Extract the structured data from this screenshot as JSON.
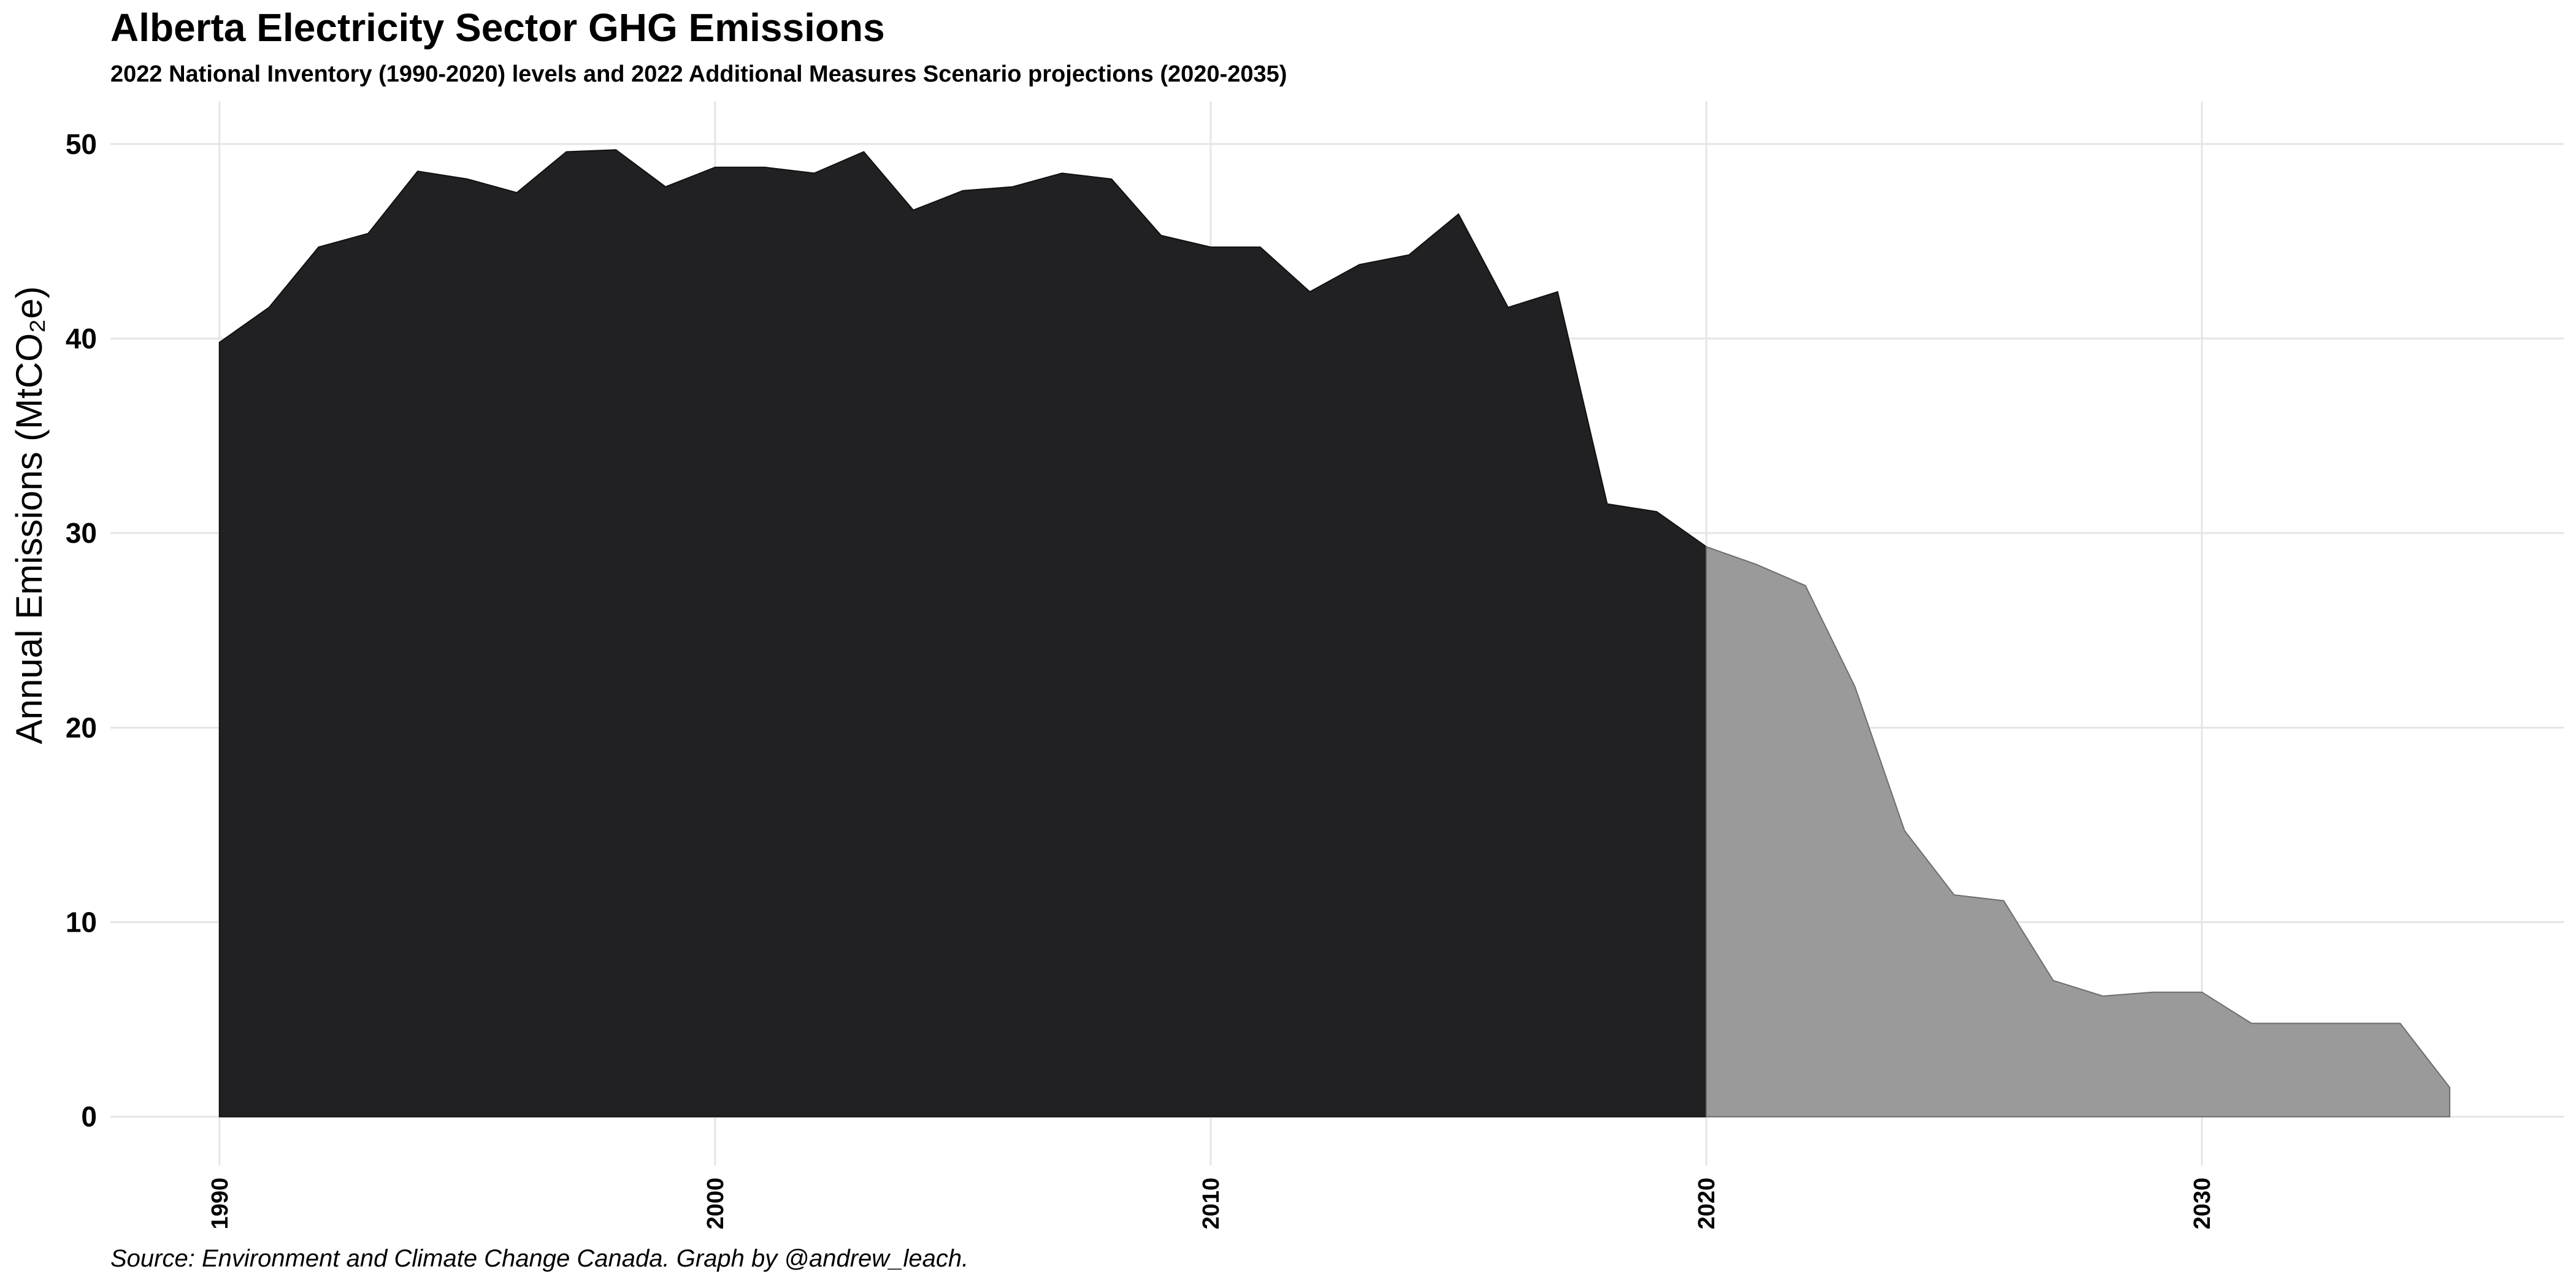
{
  "chart_data": {
    "type": "area",
    "title": "Alberta Electricity Sector GHG Emissions",
    "subtitle": "2022 National Inventory (1990-2020) levels and 2022 Additional Measures Scenario projections (2020-2035)",
    "caption": "Source: Environment and Climate Change Canada. Graph by @andrew_leach.",
    "ylabel": "Annual Emissions  (MtCO₂e)",
    "xlabel": "",
    "xlim": [
      1987.8,
      2037.3
    ],
    "ylim": [
      -2.5,
      52.2
    ],
    "x_ticks": [
      1990,
      2000,
      2010,
      2020,
      2030
    ],
    "y_ticks": [
      0,
      10,
      20,
      30,
      40,
      50
    ],
    "grid": true,
    "series": [
      {
        "color": "#212123",
        "x": [
          1990,
          1991,
          1992,
          1993,
          1994,
          1995,
          1996,
          1997,
          1998,
          1999,
          2000,
          2001,
          2002,
          2003,
          2004,
          2005,
          2006,
          2007,
          2008,
          2009,
          2010,
          2011,
          2012,
          2013,
          2014,
          2015,
          2016,
          2017,
          2018,
          2019,
          2020
        ],
        "values": [
          39.8,
          41.6,
          44.7,
          45.4,
          48.6,
          48.2,
          47.5,
          49.6,
          49.7,
          47.8,
          48.8,
          48.8,
          48.5,
          49.6,
          46.6,
          47.6,
          47.8,
          48.5,
          48.2,
          45.3,
          44.7,
          44.7,
          42.4,
          43.8,
          44.3,
          46.4,
          41.6,
          42.4,
          31.5,
          31.1,
          29.3
        ]
      },
      {
        "color": "#9a9a9b",
        "x": [
          2020,
          2021,
          2022,
          2023,
          2024,
          2025,
          2026,
          2027,
          2028,
          2029,
          2030,
          2031,
          2032,
          2033,
          2034,
          2035
        ],
        "values": [
          29.3,
          28.4,
          27.3,
          22.1,
          14.7,
          11.4,
          11.1,
          7.0,
          6.2,
          6.4,
          6.4,
          4.8,
          4.8,
          4.8,
          4.8,
          1.5
        ]
      }
    ]
  }
}
